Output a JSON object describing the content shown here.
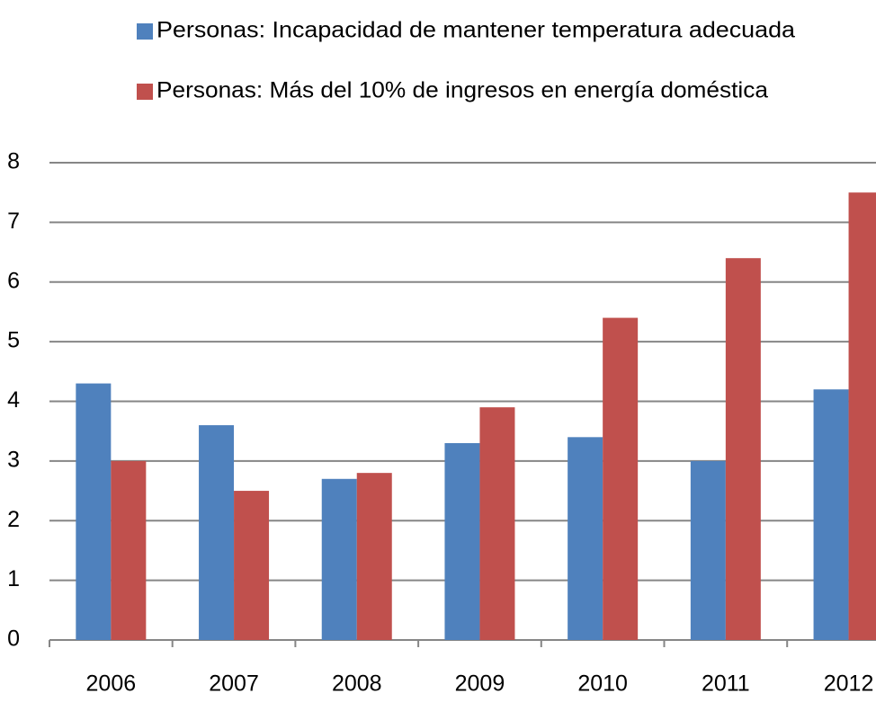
{
  "chart_data": {
    "type": "bar",
    "categories": [
      "2006",
      "2007",
      "2008",
      "2009",
      "2010",
      "2011",
      "2012"
    ],
    "series": [
      {
        "name": "Personas: Incapacidad de mantener temperatura adecuada",
        "color": "#4f81bd",
        "values": [
          4.3,
          3.6,
          2.7,
          3.3,
          3.4,
          3.0,
          4.2
        ]
      },
      {
        "name": "Personas: Más del 10% de ingresos en energía doméstica",
        "color": "#c0504d",
        "values": [
          3.0,
          2.5,
          2.8,
          3.9,
          5.4,
          6.4,
          7.5
        ]
      }
    ],
    "ylim": [
      0,
      8
    ],
    "yticks": [
      0,
      1,
      2,
      3,
      4,
      5,
      6,
      7,
      8
    ],
    "grid": true,
    "legend": "top"
  }
}
